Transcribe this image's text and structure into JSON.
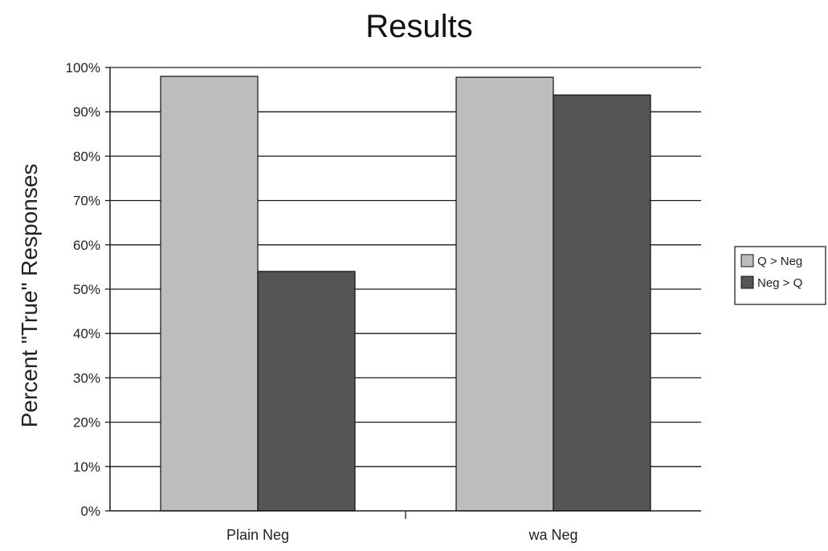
{
  "chart_data": {
    "type": "bar",
    "title": "Results",
    "xlabel": "",
    "ylabel": "Percent \"True\" Responses",
    "categories": [
      "Plain Neg",
      "wa Neg"
    ],
    "series": [
      {
        "name": "Q > Neg",
        "values": [
          98,
          97.8
        ],
        "color": "#bdbdbd"
      },
      {
        "name": "Neg > Q",
        "values": [
          54,
          93.8
        ],
        "color": "#555555"
      }
    ],
    "ylim": [
      0,
      100
    ],
    "y_ticks": [
      0,
      10,
      20,
      30,
      40,
      50,
      60,
      70,
      80,
      90,
      100
    ],
    "y_tick_labels": [
      "0%",
      "10%",
      "20%",
      "30%",
      "40%",
      "50%",
      "60%",
      "70%",
      "80%",
      "90%",
      "100%"
    ],
    "grid": true,
    "legend_position": "right"
  }
}
